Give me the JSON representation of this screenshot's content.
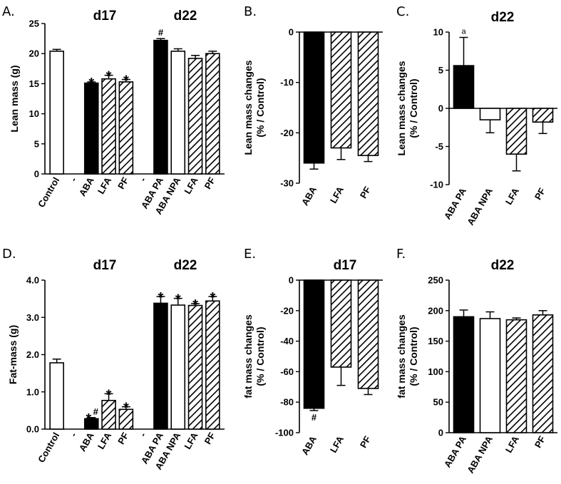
{
  "chart_data": [
    {
      "letter": "A.",
      "type": "bar",
      "ylabel": "Lean mass (g)",
      "ylim": [
        0,
        25
      ],
      "yticks": [
        0,
        5,
        10,
        15,
        20,
        25
      ],
      "titles": [
        "d17",
        "d22"
      ],
      "categories": [
        "Control",
        "-",
        "ABA",
        "LFA",
        "PF",
        "-",
        "ABA PA",
        "ABA NPA",
        "LFA",
        "PF"
      ],
      "values": [
        20.4,
        null,
        15.1,
        15.8,
        15.3,
        null,
        22.2,
        20.4,
        19.2,
        20.0
      ],
      "errors": [
        0.3,
        null,
        0.2,
        0.6,
        0.4,
        null,
        0.3,
        0.4,
        0.5,
        0.4
      ],
      "fills": [
        "white",
        null,
        "black",
        "hatch",
        "hatch",
        null,
        "black",
        "white",
        "hatch",
        "hatch"
      ],
      "annotations": [
        "",
        "",
        "*",
        "*",
        "*",
        "",
        "#",
        "",
        "",
        ""
      ],
      "grid": false
    },
    {
      "letter": "B.",
      "type": "bar",
      "ylabel": "Lean mass changes (% / Control)",
      "ylim": [
        -30,
        0
      ],
      "yticks": [
        0,
        -10,
        -20,
        -30
      ],
      "categories": [
        "ABA",
        "LFA",
        "PF"
      ],
      "values": [
        -26.0,
        -23.0,
        -24.5
      ],
      "errors": [
        1.2,
        2.3,
        1.2
      ],
      "fills": [
        "black",
        "hatch",
        "hatch"
      ],
      "annotations": [
        "",
        "",
        ""
      ],
      "grid": false
    },
    {
      "letter": "C.",
      "type": "bar",
      "ylabel": "Lean mass changes (% / Control)",
      "titles": [
        "d22"
      ],
      "ylim": [
        -10,
        10
      ],
      "yticks": [
        10,
        5,
        0,
        -5,
        -10
      ],
      "categories": [
        "ABA PA",
        "ABA NPA",
        "LFA",
        "PF"
      ],
      "values": [
        5.6,
        -1.5,
        -6.0,
        -1.8
      ],
      "errors": [
        3.7,
        1.7,
        2.2,
        1.5
      ],
      "fills": [
        "black",
        "white",
        "hatch",
        "hatch"
      ],
      "annotations": [
        "a",
        "",
        "",
        ""
      ],
      "grid": false
    },
    {
      "letter": "D.",
      "type": "bar",
      "ylabel": "Fat-mass (g)",
      "ylim": [
        0,
        4
      ],
      "yticks": [
        "0.0",
        "1.0",
        "2.0",
        "3.0",
        "4.0"
      ],
      "titles": [
        "d17",
        "d22"
      ],
      "categories": [
        "Control",
        "-",
        "ABA",
        "LFA",
        "PF",
        "-",
        "ABA PA",
        "ABA NPA",
        "LFA",
        "PF"
      ],
      "values": [
        1.78,
        null,
        0.28,
        0.77,
        0.53,
        null,
        3.38,
        3.33,
        3.32,
        3.44
      ],
      "errors": [
        0.1,
        null,
        0.03,
        0.18,
        0.07,
        null,
        0.18,
        0.18,
        0.05,
        0.12
      ],
      "fills": [
        "white",
        null,
        "black",
        "hatch",
        "hatch",
        null,
        "black",
        "white",
        "hatch",
        "hatch"
      ],
      "annotations": [
        "",
        "",
        "*#",
        "*",
        "*",
        "",
        "*",
        "*",
        "*",
        "*"
      ],
      "grid": false
    },
    {
      "letter": "E.",
      "type": "bar",
      "ylabel": "fat mass changes (% / Control)",
      "titles": [
        "d17"
      ],
      "ylim": [
        -100,
        0
      ],
      "yticks": [
        0,
        -20,
        -40,
        -60,
        -80,
        -100
      ],
      "categories": [
        "ABA",
        "LFA",
        "PF"
      ],
      "values": [
        -84.0,
        -57.0,
        -71.0
      ],
      "errors": [
        1.5,
        12.0,
        4.0
      ],
      "fills": [
        "black",
        "hatch",
        "hatch"
      ],
      "annotations": [
        "#",
        "",
        ""
      ],
      "grid": false
    },
    {
      "letter": "F.",
      "type": "bar",
      "ylabel": "fat mass changes (% / Control)",
      "titles": [
        "d22"
      ],
      "ylim": [
        0,
        250
      ],
      "yticks": [
        0,
        50,
        100,
        150,
        200,
        250
      ],
      "categories": [
        "ABA PA",
        "ABA NPA",
        "LFA",
        "PF"
      ],
      "values": [
        190,
        187,
        185,
        193
      ],
      "errors": [
        11,
        11,
        3,
        7
      ],
      "fills": [
        "black",
        "white",
        "hatch",
        "hatch"
      ],
      "annotations": [
        "",
        "",
        "",
        ""
      ],
      "grid": false
    }
  ]
}
